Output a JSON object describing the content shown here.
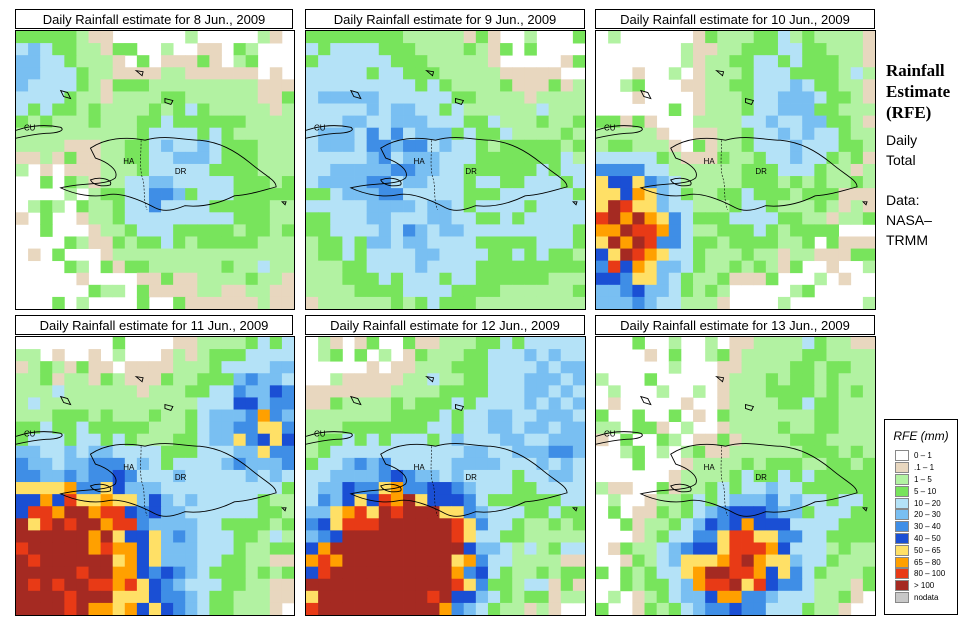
{
  "panels": [
    {
      "title": "Daily Rainfall estimate for  8 Jun., 2009",
      "date": "8 Jun., 2009",
      "scenario": "p1"
    },
    {
      "title": "Daily Rainfall estimate for  9 Jun., 2009",
      "date": "9 Jun., 2009",
      "scenario": "p2"
    },
    {
      "title": "Daily Rainfall estimate for  10 Jun., 2009",
      "date": "10 Jun., 2009",
      "scenario": "p3"
    },
    {
      "title": "Daily Rainfall estimate for  11 Jun., 2009",
      "date": "11 Jun., 2009",
      "scenario": "p4"
    },
    {
      "title": "Daily Rainfall estimate for  12 Jun., 2009",
      "date": "12 Jun., 2009",
      "scenario": "p5"
    },
    {
      "title": "Daily Rainfall estimate for  13 Jun., 2009",
      "date": "13 Jun., 2009",
      "scenario": "p6"
    }
  ],
  "map_labels": {
    "cuba": "CU",
    "haiti": "HA",
    "dominican_republic": "DR"
  },
  "side": {
    "title_line1": "Rainfall",
    "title_line2": "Estimate",
    "title_line3": "(RFE)",
    "period_line1": "Daily",
    "period_line2": "Total",
    "source_line1": "Data:",
    "source_line2": "NASA–",
    "source_line3": "TRMM"
  },
  "legend": {
    "title": "RFE (mm)",
    "items": [
      {
        "label": "0 – 1",
        "color": "#ffffff"
      },
      {
        "label": ".1 – 1",
        "color": "#e8d7bf"
      },
      {
        "label": "1 – 5",
        "color": "#b2f2a2"
      },
      {
        "label": "5 – 10",
        "color": "#78e45c"
      },
      {
        "label": "10 – 20",
        "color": "#b4e2f7"
      },
      {
        "label": "20 – 30",
        "color": "#79bff2"
      },
      {
        "label": "30 – 40",
        "color": "#3f8ee6"
      },
      {
        "label": "40 – 50",
        "color": "#1a4fd4"
      },
      {
        "label": "50 – 65",
        "color": "#ffe066"
      },
      {
        "label": "65 – 80",
        "color": "#ffa000"
      },
      {
        "label": "80 – 100",
        "color": "#e83a16"
      },
      {
        "label": "> 100",
        "color": "#a52a22"
      },
      {
        "label": "nodata",
        "color": "#c8c8c8"
      }
    ]
  }
}
